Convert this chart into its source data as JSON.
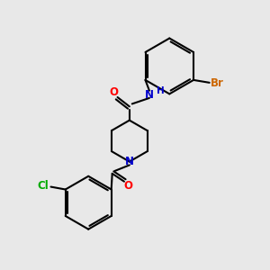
{
  "bg_color": "#e8e8e8",
  "bond_color": "#000000",
  "bond_width": 1.5,
  "atom_colors": {
    "O": "#ff0000",
    "N": "#0000cc",
    "Br": "#cc6600",
    "Cl": "#00aa00",
    "C": "#000000",
    "H": "#0000cc"
  },
  "font_size_atom": 8.5,
  "font_size_small": 7.5
}
